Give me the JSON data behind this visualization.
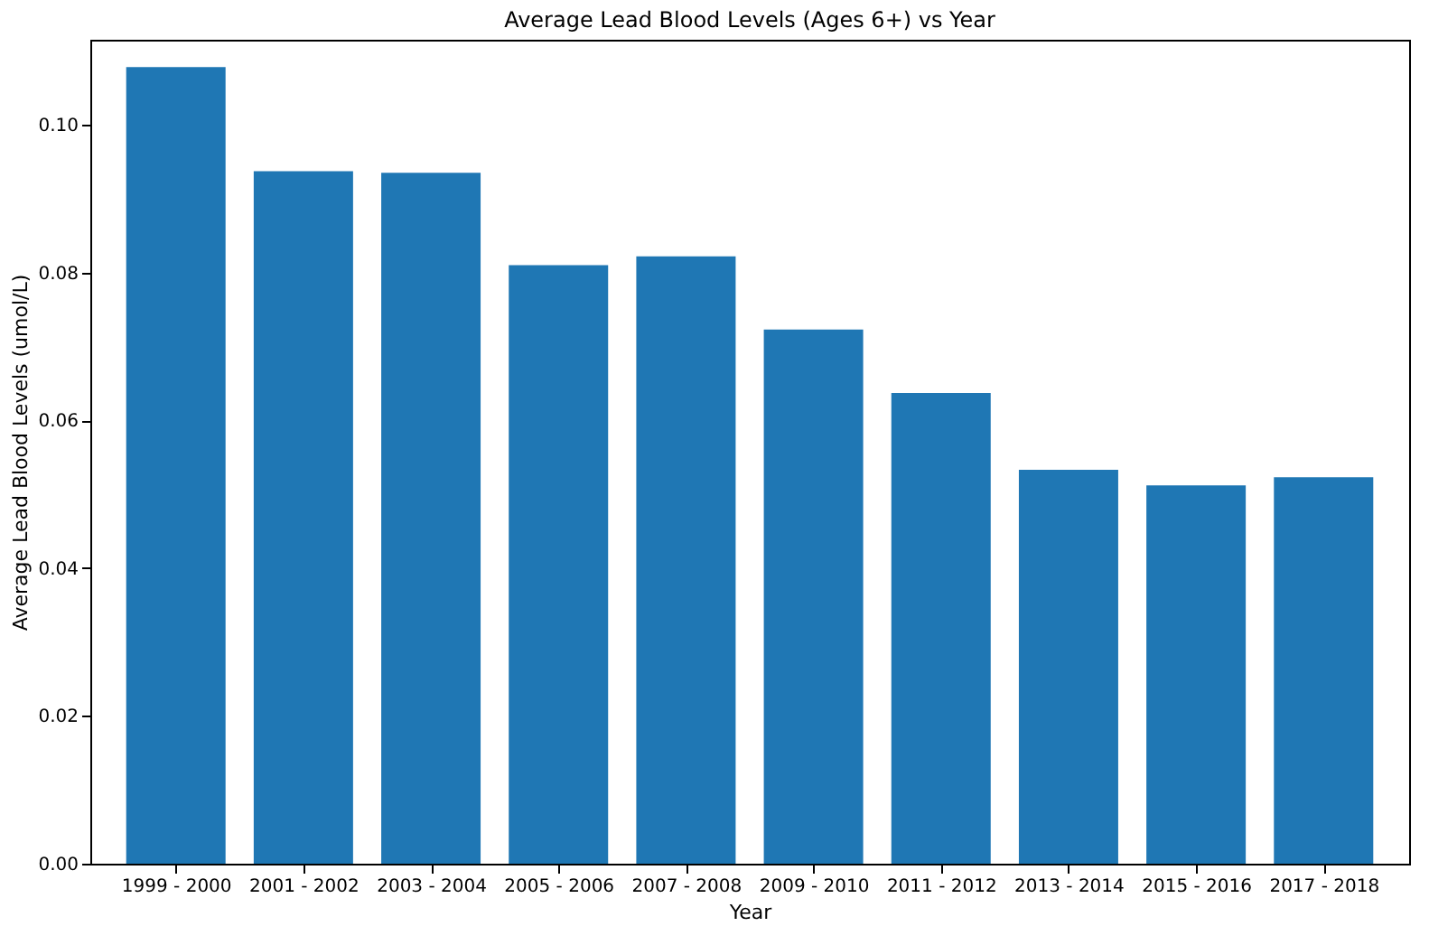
{
  "chart_data": {
    "type": "bar",
    "title": "Average Lead Blood Levels (Ages 6+) vs Year",
    "xlabel": "Year",
    "ylabel": "Average Lead Blood Levels (umol/L)",
    "categories": [
      "1999 - 2000",
      "2001 - 2002",
      "2003 - 2004",
      "2005 - 2006",
      "2007 - 2008",
      "2009 - 2010",
      "2011 - 2012",
      "2013 - 2014",
      "2015 - 2016",
      "2017 - 2018"
    ],
    "values": [
      0.1078,
      0.0937,
      0.0935,
      0.081,
      0.0822,
      0.0723,
      0.0637,
      0.0533,
      0.0512,
      0.0523
    ],
    "color": "#1f77b4",
    "ylim": [
      0,
      0.1115
    ],
    "yticks": [
      {
        "value": 0,
        "label": "0.00"
      },
      {
        "value": 0.02,
        "label": "0.02"
      },
      {
        "value": 0.04,
        "label": "0.04"
      },
      {
        "value": 0.06,
        "label": "0.06"
      },
      {
        "value": 0.08,
        "label": "0.08"
      },
      {
        "value": 0.1,
        "label": "0.10"
      }
    ],
    "grid": false
  }
}
